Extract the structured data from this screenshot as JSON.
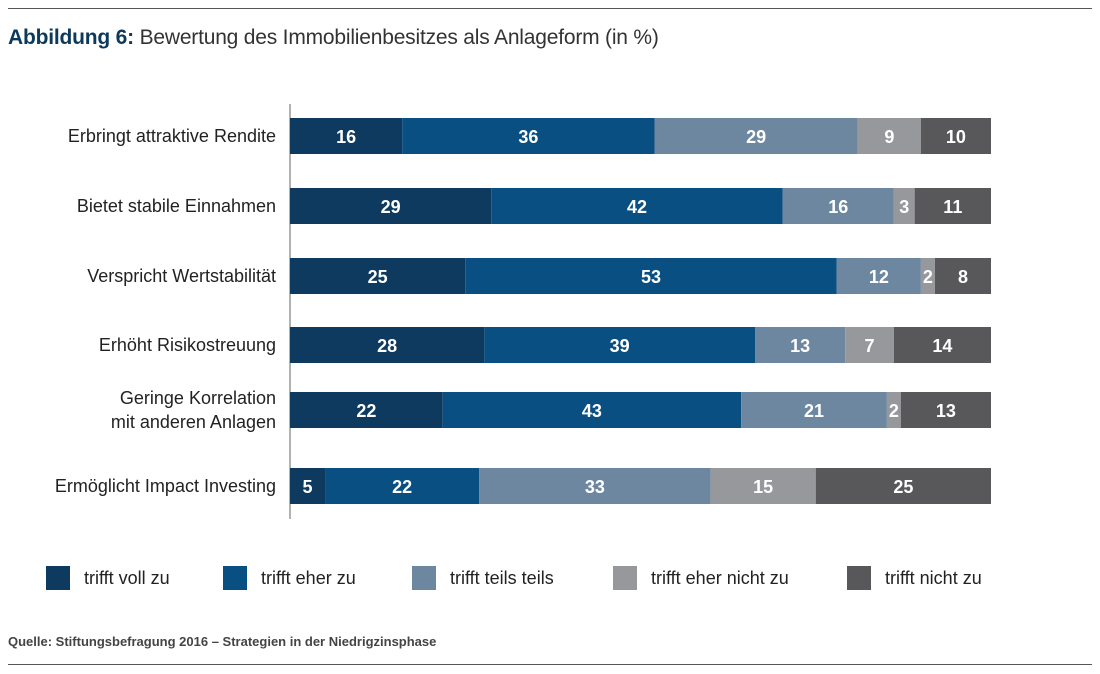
{
  "figure": {
    "title_prefix": "Abbildung 6:",
    "title": "Bewertung des Immobilienbesitzes als Anlageform (in %)",
    "source": "Quelle: Stiftungsbefragung 2016 – Strategien in der Niedrigzinsphase"
  },
  "colors": {
    "trifft_voll_zu": "#0f3a5f",
    "trifft_eher_zu": "#0a4f82",
    "trifft_teils_teils": "#6e87a1",
    "trifft_eher_nicht_zu": "#97989b",
    "trifft_nicht_zu": "#58585a"
  },
  "chart_data": {
    "type": "bar",
    "orientation": "horizontal",
    "stacked": true,
    "categories": [
      "Erbringt attraktive Rendite",
      "Bietet stabile Einnahmen",
      "Verspricht Wertstabilität",
      "Erhöht Risikostreuung",
      "Geringe Korrelation mit anderen Anlagen",
      "Ermöglicht Impact Investing"
    ],
    "series": [
      {
        "name": "trifft voll zu",
        "color": "#0f3a5f",
        "values": [
          16,
          29,
          25,
          28,
          22,
          5
        ]
      },
      {
        "name": "trifft eher zu",
        "color": "#0a4f82",
        "values": [
          36,
          42,
          53,
          39,
          43,
          22
        ]
      },
      {
        "name": "trifft teils teils",
        "color": "#6e87a1",
        "values": [
          29,
          16,
          12,
          13,
          21,
          33
        ]
      },
      {
        "name": "trifft eher nicht zu",
        "color": "#97989b",
        "values": [
          9,
          3,
          2,
          7,
          2,
          15
        ]
      },
      {
        "name": "trifft nicht zu",
        "color": "#58585a",
        "values": [
          10,
          11,
          8,
          14,
          13,
          25
        ]
      }
    ],
    "xlim": [
      0,
      100
    ],
    "grid": false,
    "legend_position": "bottom"
  }
}
